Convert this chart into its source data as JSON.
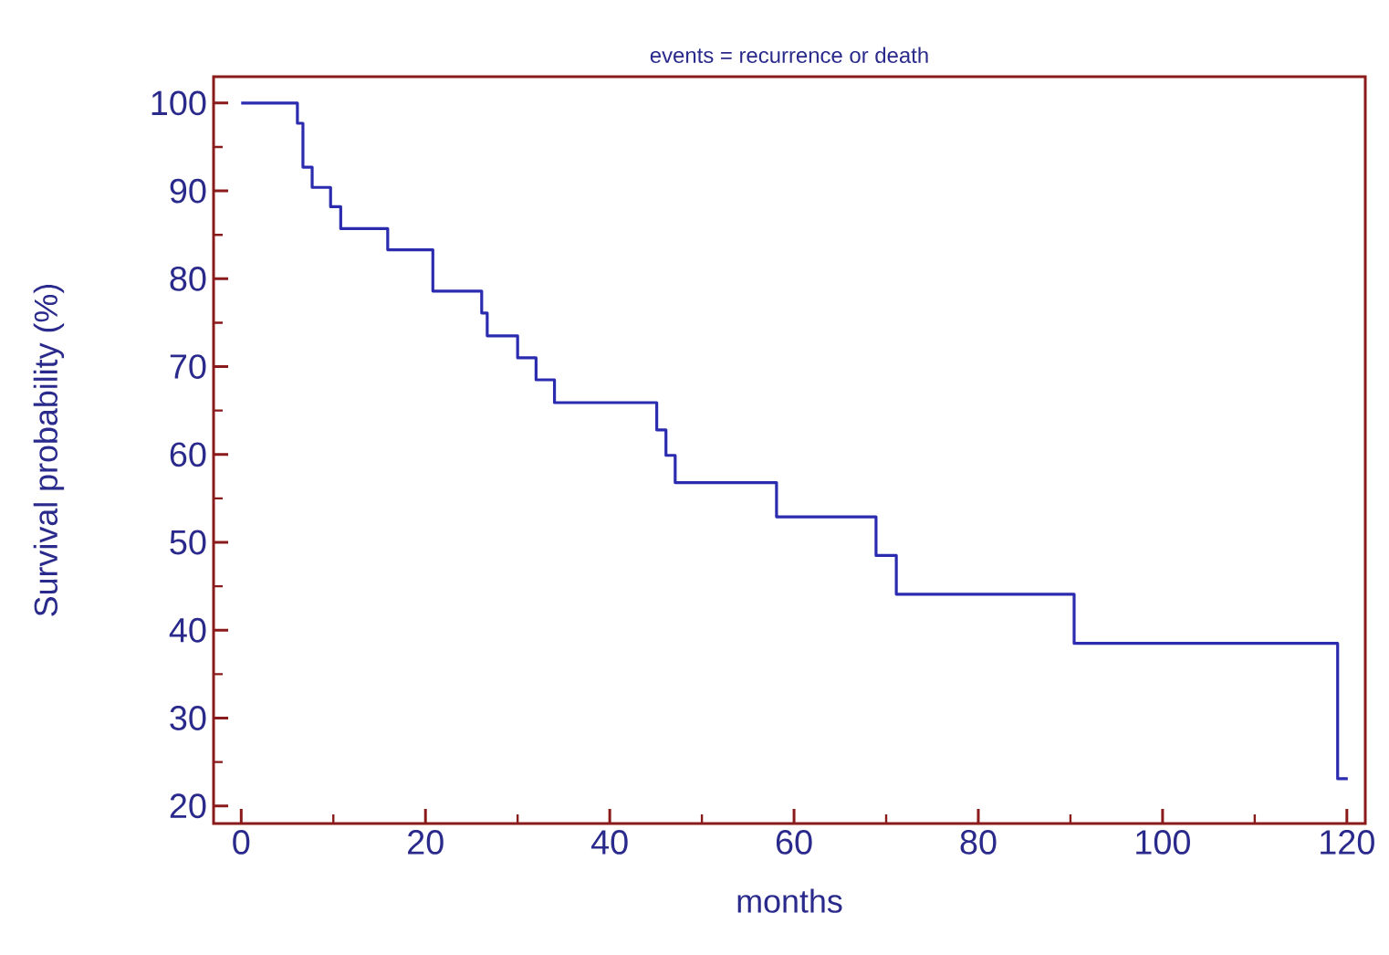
{
  "chart_data": {
    "type": "step",
    "title": "events = recurrence or death",
    "xlabel": "months",
    "ylabel": "Survival probability (%)",
    "x": [
      0,
      6.1,
      6.7,
      7.7,
      9.7,
      10.8,
      15.9,
      20.8,
      26.1,
      26.7,
      30.0,
      32.0,
      34.0,
      45.1,
      46.1,
      47.1,
      58.1,
      68.9,
      71.1,
      90.4,
      119.0,
      120.1
    ],
    "series": [
      {
        "color": "#2b2bb0",
        "values": [
          100,
          97.7,
          92.7,
          90.4,
          88.2,
          85.7,
          83.3,
          78.6,
          76.1,
          73.5,
          71.0,
          68.5,
          65.9,
          62.8,
          59.9,
          56.8,
          52.9,
          48.5,
          44.1,
          38.5,
          23.1,
          23.1
        ]
      }
    ],
    "xlim": [
      -3,
      122
    ],
    "ylim": [
      18,
      103
    ],
    "xticks": [
      0,
      20,
      40,
      60,
      80,
      100,
      120
    ],
    "yticks": [
      20,
      30,
      40,
      50,
      60,
      70,
      80,
      90,
      100
    ],
    "marker": "none",
    "line_style": "solid"
  }
}
